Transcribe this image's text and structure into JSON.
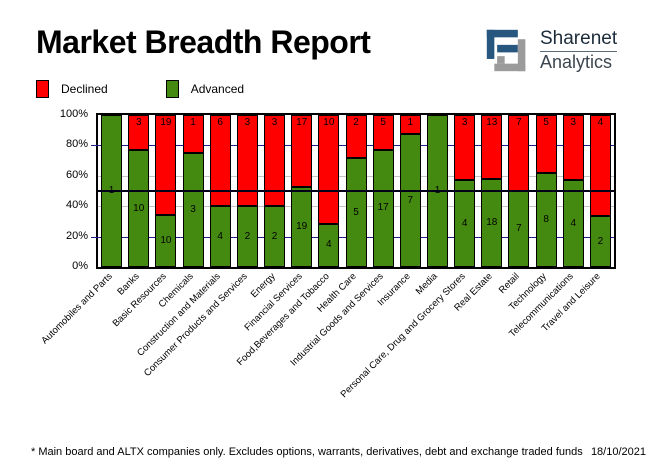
{
  "title": "Market Breadth Report",
  "logo": {
    "line1": "Sharenet",
    "line2": "Analytics",
    "glyph_blue": "#27577f",
    "glyph_gray": "#9b9b9b"
  },
  "legend": [
    {
      "label": "Declined",
      "color": "#ff0000"
    },
    {
      "label": "Advanced",
      "color": "#448a10"
    }
  ],
  "footnote": "* Main board and ALTX companies only. Excludes options, warrants, derivatives, debt and exchange traded funds",
  "date": "18/10/2021",
  "chart_data": {
    "type": "bar",
    "stacked": true,
    "stack_mode": "percent",
    "title": "Market Breadth Report",
    "xlabel": "",
    "ylabel": "",
    "ylim": [
      0,
      100
    ],
    "yticks": [
      "0%",
      "20%",
      "40%",
      "60%",
      "80%",
      "100%"
    ],
    "grid": {
      "navy_lines_pct": [
        20,
        80
      ],
      "gray_lines_pct": [
        40,
        60
      ],
      "reference_line_pct": 50,
      "navy_color": "#1e1e8c",
      "gray_color": "#c4c4c4",
      "reference_color": "#000018"
    },
    "legend_position": "top-left",
    "categories": [
      "Automobiles and Parts",
      "Banks",
      "Basic Resources",
      "Chemicals",
      "Construction and Materials",
      "Consumer Products and Services",
      "Energy",
      "Financial Services",
      "Food,Beverages and Tobacco",
      "Health Care",
      "Industrial Goods and Services",
      "Insurance",
      "Media",
      "Personal Care, Drug and Grocery Stores",
      "Real Estate",
      "Retail",
      "Technology",
      "Telecommunications",
      "Travel and Leisure"
    ],
    "series": [
      {
        "name": "Declined",
        "color": "#ff0000",
        "values": [
          0,
          3,
          19,
          1,
          6,
          3,
          3,
          17,
          10,
          2,
          5,
          1,
          0,
          3,
          13,
          7,
          5,
          3,
          4
        ]
      },
      {
        "name": "Advanced",
        "color": "#448a10",
        "values": [
          1,
          10,
          10,
          3,
          4,
          2,
          2,
          19,
          4,
          5,
          17,
          7,
          1,
          4,
          18,
          7,
          8,
          4,
          2
        ]
      }
    ]
  }
}
